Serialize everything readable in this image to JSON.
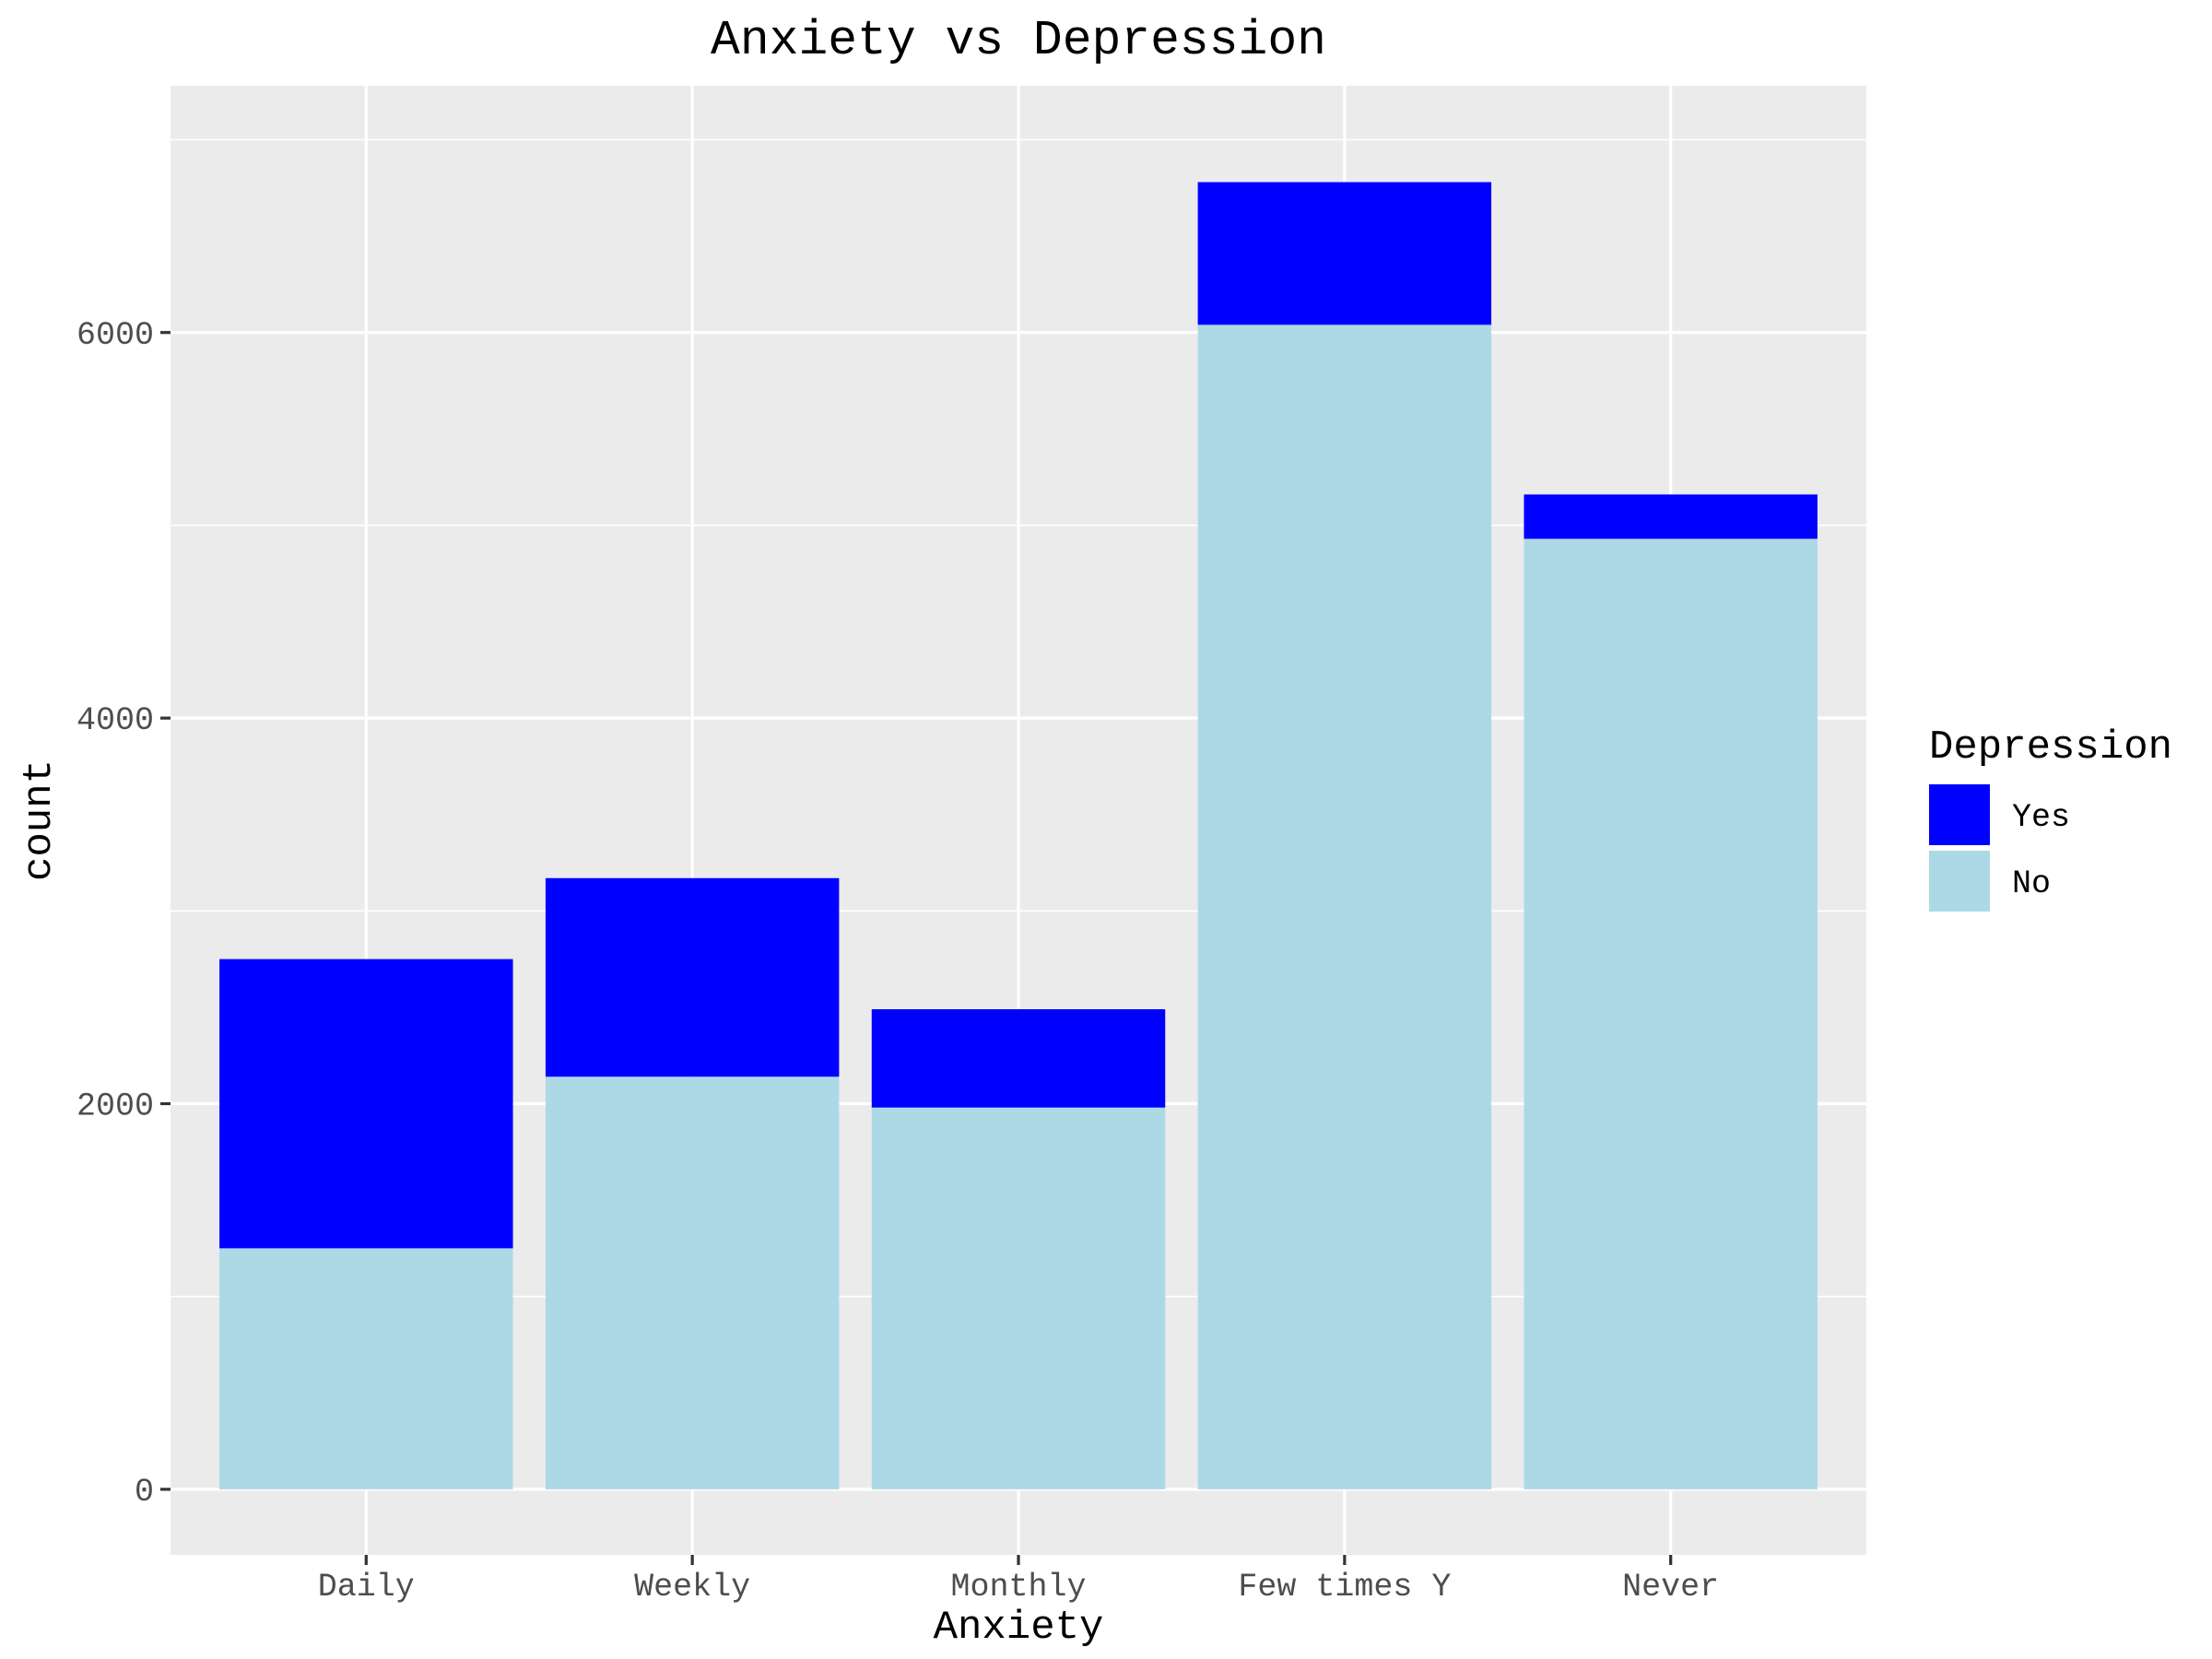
{
  "chart_data": {
    "type": "bar",
    "stacked": true,
    "title": "Anxiety vs Depression",
    "xlabel": "Anxiety",
    "ylabel": "count",
    "categories": [
      "Daily",
      "Weekly",
      "Monthly",
      "Few times Y",
      "Never"
    ],
    "series": [
      {
        "name": "No",
        "color": "#add8e6",
        "values": [
          1250,
          2140,
          1980,
          6040,
          4930
        ]
      },
      {
        "name": "Yes",
        "color": "#0000ff",
        "values": [
          1500,
          1030,
          510,
          740,
          230
        ]
      }
    ],
    "ylim": [
      -340,
      7280
    ],
    "yticks": [
      0,
      2000,
      4000,
      6000
    ],
    "grid": true,
    "panel_background": "#ebebeb",
    "grid_color": "#ffffff",
    "legend": {
      "title": "Depression",
      "position": "right",
      "entries": [
        {
          "label": "Yes",
          "color": "#0000ff"
        },
        {
          "label": "No",
          "color": "#add8e6"
        }
      ]
    }
  }
}
